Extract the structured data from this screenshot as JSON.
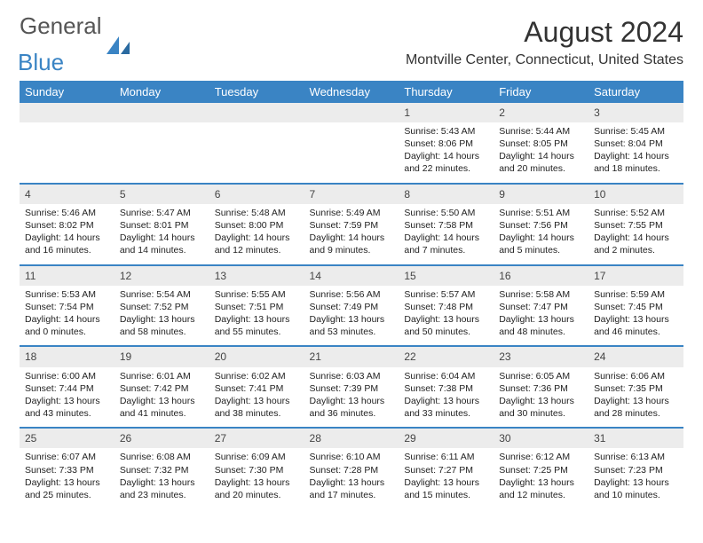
{
  "logo": {
    "text1": "General",
    "text2": "Blue"
  },
  "title": "August 2024",
  "location": "Montville Center, Connecticut, United States",
  "colors": {
    "accent": "#3a84c4",
    "header_bg": "#3a84c4",
    "header_text": "#ffffff",
    "daynum_bg": "#ececec",
    "body_text": "#222222"
  },
  "dayNames": [
    "Sunday",
    "Monday",
    "Tuesday",
    "Wednesday",
    "Thursday",
    "Friday",
    "Saturday"
  ],
  "weeks": [
    [
      {
        "empty": true
      },
      {
        "empty": true
      },
      {
        "empty": true
      },
      {
        "empty": true
      },
      {
        "num": "1",
        "sunrise": "5:43 AM",
        "sunset": "8:06 PM",
        "daylight": "14 hours and 22 minutes."
      },
      {
        "num": "2",
        "sunrise": "5:44 AM",
        "sunset": "8:05 PM",
        "daylight": "14 hours and 20 minutes."
      },
      {
        "num": "3",
        "sunrise": "5:45 AM",
        "sunset": "8:04 PM",
        "daylight": "14 hours and 18 minutes."
      }
    ],
    [
      {
        "num": "4",
        "sunrise": "5:46 AM",
        "sunset": "8:02 PM",
        "daylight": "14 hours and 16 minutes."
      },
      {
        "num": "5",
        "sunrise": "5:47 AM",
        "sunset": "8:01 PM",
        "daylight": "14 hours and 14 minutes."
      },
      {
        "num": "6",
        "sunrise": "5:48 AM",
        "sunset": "8:00 PM",
        "daylight": "14 hours and 12 minutes."
      },
      {
        "num": "7",
        "sunrise": "5:49 AM",
        "sunset": "7:59 PM",
        "daylight": "14 hours and 9 minutes."
      },
      {
        "num": "8",
        "sunrise": "5:50 AM",
        "sunset": "7:58 PM",
        "daylight": "14 hours and 7 minutes."
      },
      {
        "num": "9",
        "sunrise": "5:51 AM",
        "sunset": "7:56 PM",
        "daylight": "14 hours and 5 minutes."
      },
      {
        "num": "10",
        "sunrise": "5:52 AM",
        "sunset": "7:55 PM",
        "daylight": "14 hours and 2 minutes."
      }
    ],
    [
      {
        "num": "11",
        "sunrise": "5:53 AM",
        "sunset": "7:54 PM",
        "daylight": "14 hours and 0 minutes."
      },
      {
        "num": "12",
        "sunrise": "5:54 AM",
        "sunset": "7:52 PM",
        "daylight": "13 hours and 58 minutes."
      },
      {
        "num": "13",
        "sunrise": "5:55 AM",
        "sunset": "7:51 PM",
        "daylight": "13 hours and 55 minutes."
      },
      {
        "num": "14",
        "sunrise": "5:56 AM",
        "sunset": "7:49 PM",
        "daylight": "13 hours and 53 minutes."
      },
      {
        "num": "15",
        "sunrise": "5:57 AM",
        "sunset": "7:48 PM",
        "daylight": "13 hours and 50 minutes."
      },
      {
        "num": "16",
        "sunrise": "5:58 AM",
        "sunset": "7:47 PM",
        "daylight": "13 hours and 48 minutes."
      },
      {
        "num": "17",
        "sunrise": "5:59 AM",
        "sunset": "7:45 PM",
        "daylight": "13 hours and 46 minutes."
      }
    ],
    [
      {
        "num": "18",
        "sunrise": "6:00 AM",
        "sunset": "7:44 PM",
        "daylight": "13 hours and 43 minutes."
      },
      {
        "num": "19",
        "sunrise": "6:01 AM",
        "sunset": "7:42 PM",
        "daylight": "13 hours and 41 minutes."
      },
      {
        "num": "20",
        "sunrise": "6:02 AM",
        "sunset": "7:41 PM",
        "daylight": "13 hours and 38 minutes."
      },
      {
        "num": "21",
        "sunrise": "6:03 AM",
        "sunset": "7:39 PM",
        "daylight": "13 hours and 36 minutes."
      },
      {
        "num": "22",
        "sunrise": "6:04 AM",
        "sunset": "7:38 PM",
        "daylight": "13 hours and 33 minutes."
      },
      {
        "num": "23",
        "sunrise": "6:05 AM",
        "sunset": "7:36 PM",
        "daylight": "13 hours and 30 minutes."
      },
      {
        "num": "24",
        "sunrise": "6:06 AM",
        "sunset": "7:35 PM",
        "daylight": "13 hours and 28 minutes."
      }
    ],
    [
      {
        "num": "25",
        "sunrise": "6:07 AM",
        "sunset": "7:33 PM",
        "daylight": "13 hours and 25 minutes."
      },
      {
        "num": "26",
        "sunrise": "6:08 AM",
        "sunset": "7:32 PM",
        "daylight": "13 hours and 23 minutes."
      },
      {
        "num": "27",
        "sunrise": "6:09 AM",
        "sunset": "7:30 PM",
        "daylight": "13 hours and 20 minutes."
      },
      {
        "num": "28",
        "sunrise": "6:10 AM",
        "sunset": "7:28 PM",
        "daylight": "13 hours and 17 minutes."
      },
      {
        "num": "29",
        "sunrise": "6:11 AM",
        "sunset": "7:27 PM",
        "daylight": "13 hours and 15 minutes."
      },
      {
        "num": "30",
        "sunrise": "6:12 AM",
        "sunset": "7:25 PM",
        "daylight": "13 hours and 12 minutes."
      },
      {
        "num": "31",
        "sunrise": "6:13 AM",
        "sunset": "7:23 PM",
        "daylight": "13 hours and 10 minutes."
      }
    ]
  ]
}
